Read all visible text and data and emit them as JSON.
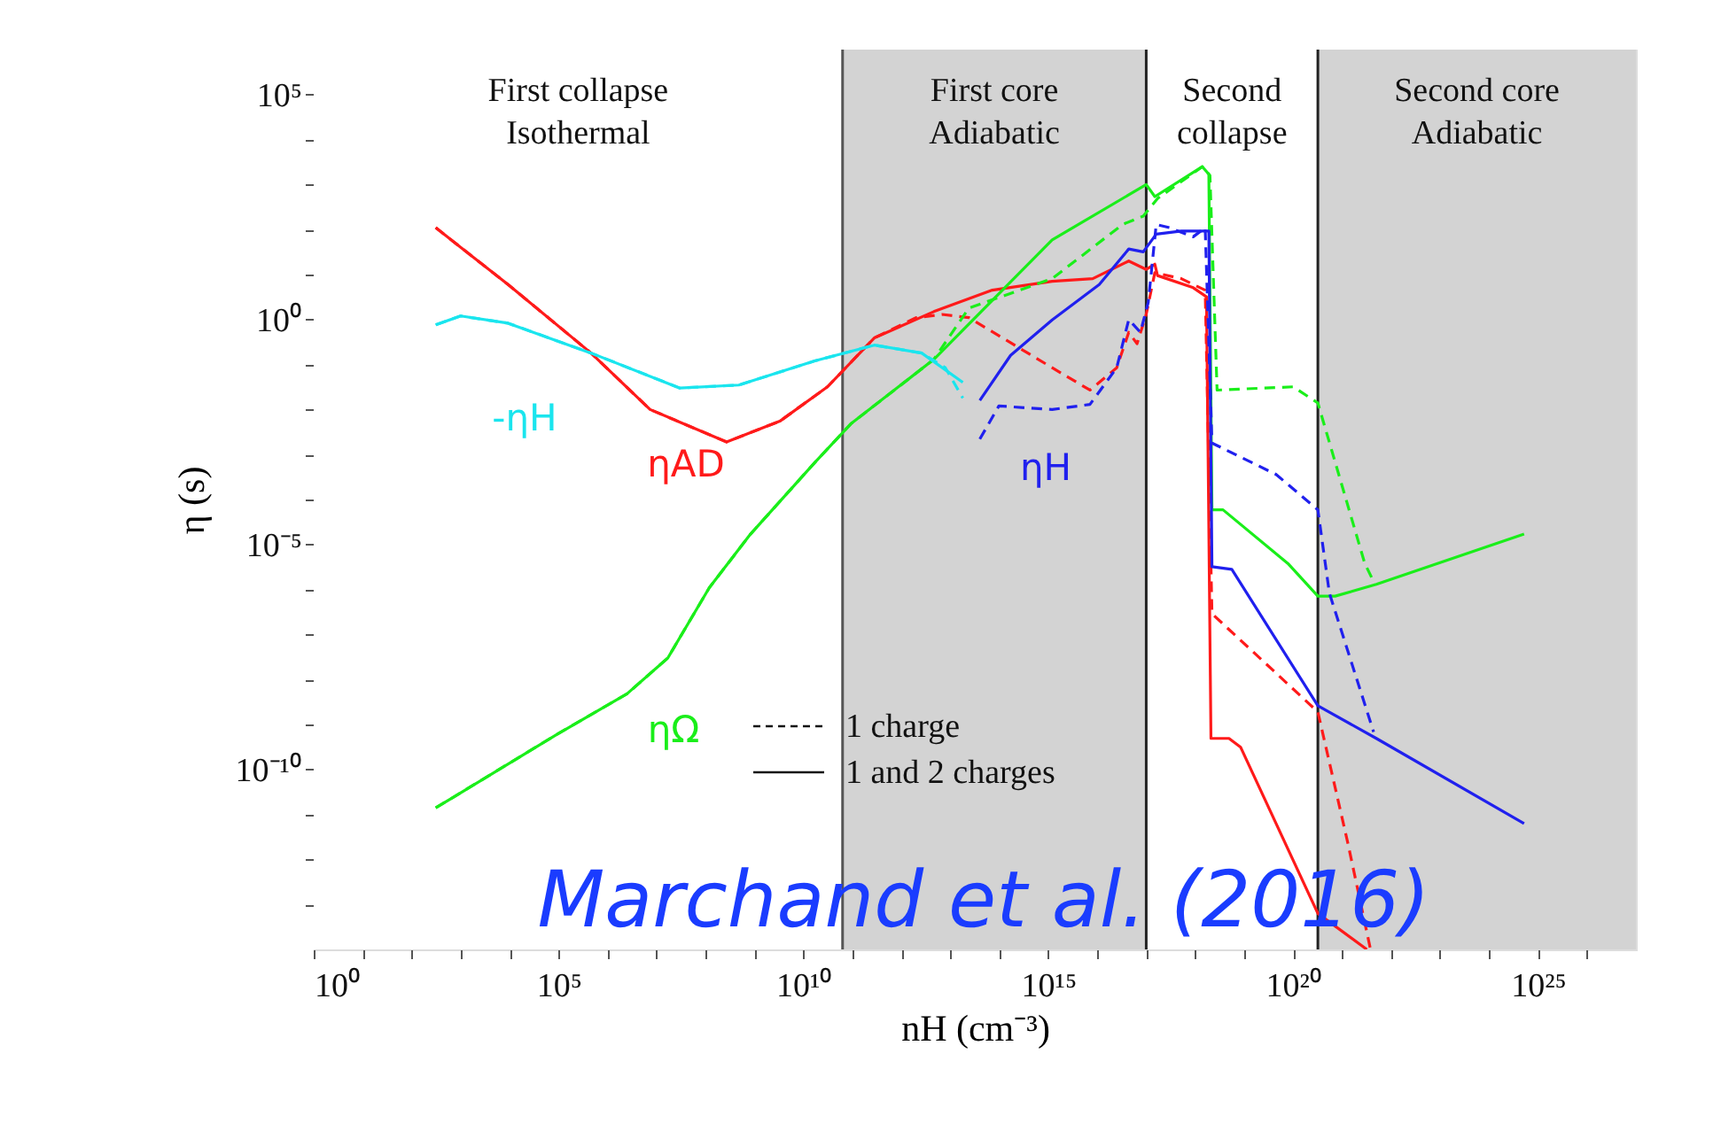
{
  "chart_data": {
    "type": "line",
    "xlabel": "nH (cm⁻³)",
    "ylabel": "η (s)",
    "log": "xy",
    "marker": "none",
    "xlim": [
      1,
      1e+27
    ],
    "ylim": [
      1e-14,
      1000000.0
    ],
    "xticks": [
      {
        "value": 1,
        "label": "10⁰"
      },
      {
        "value": 10.0,
        "label": null
      },
      {
        "value": 100.0,
        "label": null
      },
      {
        "value": 1000.0,
        "label": null
      },
      {
        "value": 10000.0,
        "label": null
      },
      {
        "value": 100000.0,
        "label": "10⁵"
      },
      {
        "value": 1000000.0,
        "label": null
      },
      {
        "value": 10000000.0,
        "label": null
      },
      {
        "value": 100000000.0,
        "label": null
      },
      {
        "value": 1000000000.0,
        "label": null
      },
      {
        "value": 10000000000.0,
        "label": "10¹⁰"
      },
      {
        "value": 100000000000.0,
        "label": null
      },
      {
        "value": 1000000000000.0,
        "label": null
      },
      {
        "value": 10000000000000.0,
        "label": null
      },
      {
        "value": 100000000000000.0,
        "label": null
      },
      {
        "value": 1000000000000000.0,
        "label": "10¹⁵"
      },
      {
        "value": 1e+16,
        "label": null
      },
      {
        "value": 1e+17,
        "label": null
      },
      {
        "value": 1e+18,
        "label": null
      },
      {
        "value": 1e+19,
        "label": null
      },
      {
        "value": 1e+20,
        "label": "10²⁰"
      },
      {
        "value": 1e+21,
        "label": null
      },
      {
        "value": 1e+22,
        "label": null
      },
      {
        "value": 1e+23,
        "label": null
      },
      {
        "value": 1e+24,
        "label": null
      },
      {
        "value": 1e+25,
        "label": "10²⁵"
      },
      {
        "value": 1e+26,
        "label": null
      }
    ],
    "yticks": [
      {
        "value": 1e-13,
        "label": null
      },
      {
        "value": 1e-12,
        "label": null
      },
      {
        "value": 1e-11,
        "label": null
      },
      {
        "value": 1e-10,
        "label": "10⁻¹⁰"
      },
      {
        "value": 1e-09,
        "label": null
      },
      {
        "value": 1e-08,
        "label": null
      },
      {
        "value": 1e-07,
        "label": null
      },
      {
        "value": 1e-06,
        "label": null
      },
      {
        "value": 1e-05,
        "label": "10⁻⁵"
      },
      {
        "value": 0.0001,
        "label": null
      },
      {
        "value": 0.001,
        "label": null
      },
      {
        "value": 0.01,
        "label": null
      },
      {
        "value": 0.1,
        "label": null
      },
      {
        "value": 1,
        "label": "10⁰"
      },
      {
        "value": 10.0,
        "label": null
      },
      {
        "value": 100.0,
        "label": null
      },
      {
        "value": 1000.0,
        "label": null
      },
      {
        "value": 10000.0,
        "label": null
      },
      {
        "value": 100000.0,
        "label": "10⁵"
      }
    ],
    "series": [
      {
        "line_style": "dashed",
        "color": "#ff1a1a",
        "x": [
          310.0,
          9300.0,
          460000.0,
          7400000.0,
          270000000.0,
          3300000000.0,
          31000000000.0,
          280000000000.0,
          2000000000000.0,
          6800000000000.0,
          24000000000000.0,
          1200000000000000.0,
          7100000000000000.0,
          2.5e+16,
          4.4e+16,
          6.5e+16,
          1e+17,
          1.5e+17,
          5.2e+17,
          1.6e+18,
          2.2e+18,
          3.2e+20,
          1.3e+21,
          3.8e+21
        ],
        "values": [
          110.0,
          6.0,
          0.18,
          0.01,
          0.0019,
          0.0055,
          0.032,
          0.39,
          1.1,
          1.3,
          1.1,
          0.085,
          0.027,
          0.085,
          0.52,
          0.29,
          1.3,
          11,
          8.1,
          4.5,
          2.9e-07,
          1.9e-09,
          2.4e-12,
          1e-14
        ]
      },
      {
        "name": "ηAD",
        "line_style": "solid",
        "color": "#ff1a1a",
        "x": [
          310.0,
          9300.0,
          460000.0,
          7400000.0,
          270000000.0,
          3300000000.0,
          31000000000.0,
          280000000000.0,
          4600000000000.0,
          72000000000000.0,
          1200000000000000.0,
          8100000000000000.0,
          4.4e+16,
          1e+17,
          1.5e+17,
          1.7e+17,
          9.1e+17,
          1.7e+18,
          2.1e+18,
          4.9e+18,
          8.5e+18,
          3.2e+20,
          3.2e+21
        ],
        "values": [
          110.0,
          6.0,
          0.18,
          0.01,
          0.0019,
          0.0055,
          0.032,
          0.39,
          1.5,
          4.5,
          7.1,
          8.1,
          20,
          13,
          17,
          9.5,
          5.1,
          3.2,
          4.9e-10,
          4.9e-10,
          3.1e-10,
          6.3e-14,
          1e-14
        ]
      },
      {
        "line_style": "dashed",
        "color": "#1aee1a",
        "x": [
          310.0,
          87000.0,
          2500000.0,
          17000000.0,
          120000000.0,
          830000000.0,
          17000000000.0,
          93000000000.0,
          4600000000000.0,
          24000000000000.0,
          1200000000000000.0,
          3.3e+16,
          8.7e+16,
          1.7e+17,
          1.4e+18,
          2e+18,
          2.8e+18,
          1e+20,
          3.2e+20,
          2.9e+21,
          4.4e+21
        ],
        "values": [
          1.4e-11,
          5.8e-10,
          4.8e-09,
          3e-08,
          1.1e-06,
          1.7e-05,
          0.00066,
          0.0048,
          0.13,
          1.8,
          8.1,
          130.0,
          200.0,
          490.0,
          2500.0,
          1600.0,
          0.027,
          0.032,
          0.014,
          3.8e-06,
          1.5e-06
        ]
      },
      {
        "name": "ηΩ",
        "line_style": "solid",
        "color": "#1aee1a",
        "x": [
          310.0,
          87000.0,
          2500000.0,
          17000000.0,
          120000000.0,
          830000000.0,
          17000000000.0,
          93000000000.0,
          4600000000000.0,
          1200000000000000.0,
          1e+17,
          1.5e+17,
          1.4e+18,
          1.9e+18,
          2.2e+18,
          3.7e+18,
          7.8e+19,
          3.2e+20,
          7.2e+20,
          5e+21,
          5.2e+24
        ],
        "values": [
          1.4e-11,
          5.8e-10,
          4.8e-09,
          3e-08,
          1.1e-06,
          1.7e-05,
          0.00066,
          0.0048,
          0.13,
          59,
          1000.0,
          540.0,
          2500.0,
          1700.0,
          5.9e-05,
          5.9e-05,
          3.8e-06,
          7.1e-07,
          7.1e-07,
          1.3e-06,
          1.7e-05
        ]
      },
      {
        "line_style": "dashed",
        "color": "#2020ee",
        "x": [
          40000000000000.0,
          98000000000000.0,
          1200000000000000.0,
          7100000000000000.0,
          2.5e+16,
          4.4e+16,
          7.6e+16,
          1.1e+17,
          1.6e+17,
          3e+17,
          9.1e+17,
          1.6e+18,
          2.2e+18,
          4.5e+19,
          3.2e+20,
          5.5e+20,
          4.4e+21
        ],
        "values": [
          0.0022,
          0.012,
          0.01,
          0.013,
          0.085,
          1.0,
          0.52,
          2.4,
          130.0,
          110.0,
          69,
          110.0,
          0.0018,
          0.00036,
          5.9e-05,
          8.3e-07,
          6.8e-10
        ]
      },
      {
        "name": "ηH",
        "line_style": "solid",
        "color": "#2020ee",
        "x": [
          40000000000000.0,
          170000000000000.0,
          1200000000000000.0,
          1.1e+16,
          4.4e+16,
          8.7e+16,
          1.6e+17,
          5.2e+17,
          1.9e+18,
          2.2e+18,
          5.6e+18,
          3.2e+20,
          5e+21,
          5.2e+24
        ],
        "values": [
          0.016,
          0.16,
          0.98,
          6.0,
          37,
          32,
          79,
          93,
          93,
          3.2e-06,
          2.8e-06,
          2.6e-09,
          4.9e-10,
          6.3e-12
        ]
      },
      {
        "line_style": "dashed",
        "color": "#1ae5ee",
        "x": [
          310.0,
          1000.0,
          9300.0,
          460000.0,
          30000000.0,
          480000000.0,
          17000000000.0,
          280000000000.0,
          2600000000000.0,
          7900000000000.0,
          18000000000000.0
        ],
        "values": [
          0.76,
          1.2,
          0.83,
          0.18,
          0.03,
          0.035,
          0.12,
          0.27,
          0.18,
          0.085,
          0.018
        ]
      },
      {
        "name": "-ηH",
        "line_style": "solid",
        "color": "#1ae5ee",
        "x": [
          310.0,
          1000.0,
          9300.0,
          460000.0,
          30000000.0,
          480000000.0,
          17000000000.0,
          280000000000.0,
          2600000000000.0,
          18000000000000.0
        ],
        "values": [
          0.76,
          1.2,
          0.83,
          0.18,
          0.03,
          0.035,
          0.12,
          0.27,
          0.18,
          0.04
        ]
      }
    ],
    "bands": [
      {
        "axis": "x",
        "from": 1,
        "to": 63000000000.0,
        "label": "First collapse\nIsothermal",
        "color": "#ffffff"
      },
      {
        "axis": "x",
        "from": 63000000000.0,
        "to": 1e+17,
        "label": "First core\nAdiabatic",
        "color": "#d3d3d3"
      },
      {
        "axis": "x",
        "from": 1e+17,
        "to": 3.2e+20,
        "label": "Second\ncollapse",
        "color": "#ffffff"
      },
      {
        "axis": "x",
        "from": 3.2e+20,
        "to": 1e+27,
        "label": "Second core\nAdiabatic",
        "color": "#d3d3d3"
      }
    ],
    "ref_lines": [
      {
        "axis": "x",
        "value": 63000000000.0,
        "color": "#555555"
      },
      {
        "axis": "x",
        "value": 1e+17,
        "color": "#222222"
      },
      {
        "axis": "x",
        "value": 3.2e+20,
        "color": "#222222"
      }
    ],
    "annotations": [
      "1 charge",
      "1 and 2 charges",
      "Marchand et al. (2016)"
    ]
  }
}
